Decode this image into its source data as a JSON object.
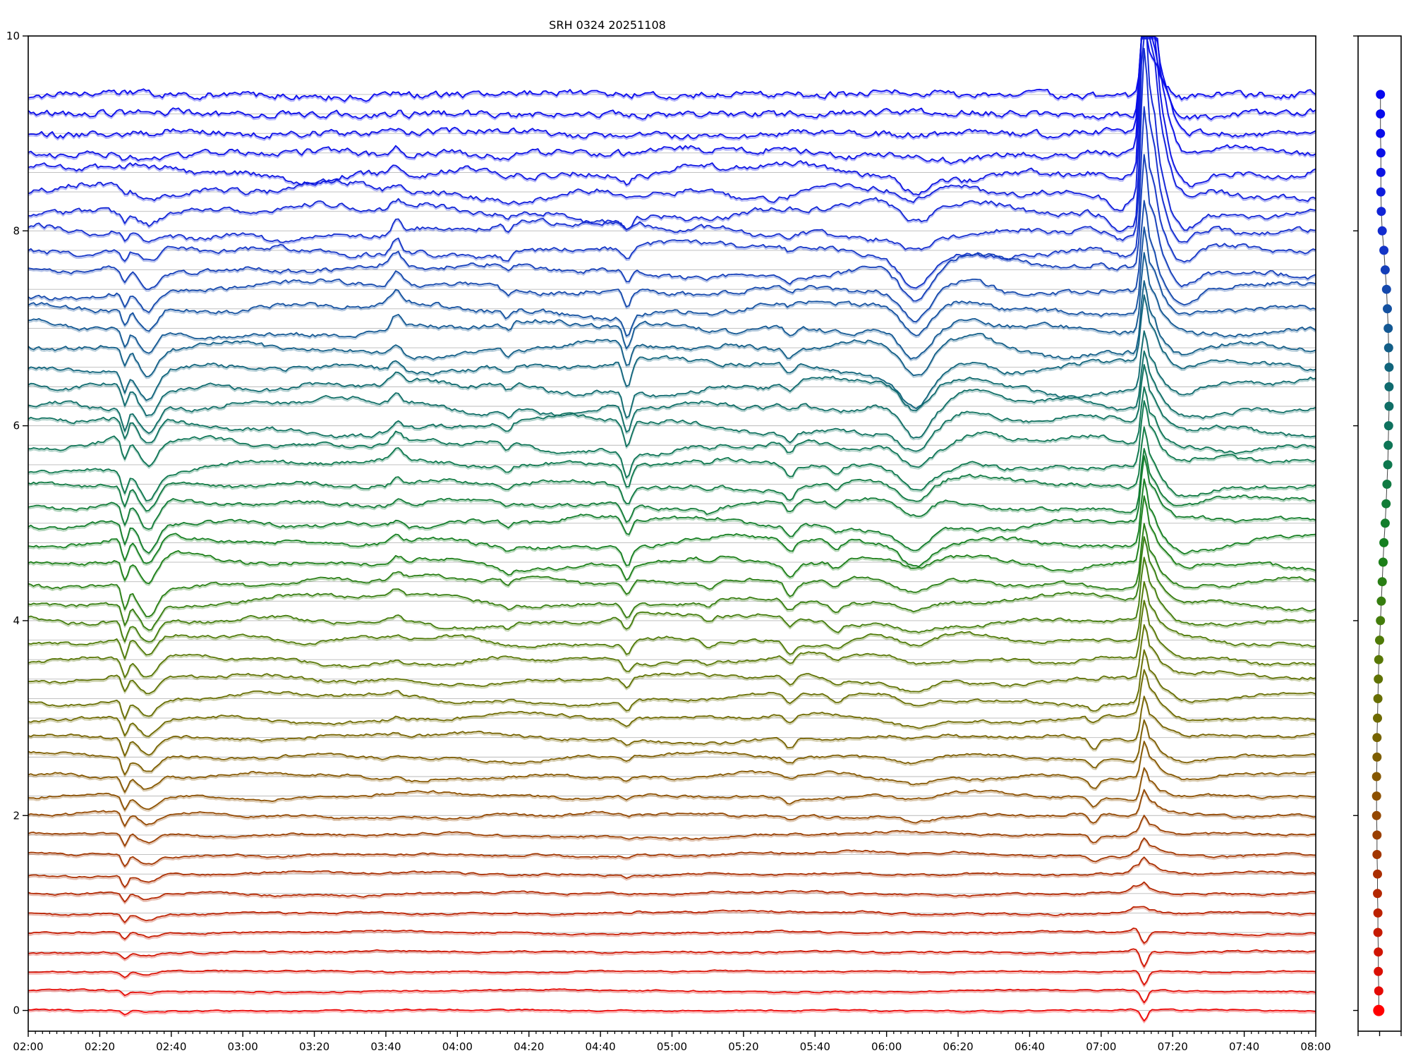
{
  "title": "SRH 0324 20251108",
  "axes": {
    "y_tick_labels": [
      "0",
      "2",
      "4",
      "6",
      "8",
      "10"
    ],
    "y_tick_values": [
      0,
      2,
      4,
      6,
      8,
      10
    ],
    "x_tick_labels": [
      "02:00",
      "02:20",
      "02:40",
      "03:00",
      "03:20",
      "03:40",
      "04:00",
      "04:20",
      "04:40",
      "05:00",
      "05:20",
      "05:40",
      "06:00",
      "06:20",
      "06:40",
      "07:00",
      "07:20",
      "07:40",
      "08:00"
    ],
    "x_major_minutes": [
      0,
      20,
      40,
      60,
      80,
      100,
      120,
      140,
      160,
      180,
      200,
      220,
      240,
      260,
      280,
      300,
      320,
      340,
      360
    ],
    "x_minor_step_minutes": 2,
    "x_total_minutes": 360
  },
  "chart_data": {
    "type": "line",
    "subtype": "stacked multi-trace time series (radioheliograph scan) with dot-column side panel",
    "title": "SRH 0324 20251108",
    "x_start": "02:00",
    "x_end": "08:00",
    "ylim": [
      -0.213,
      10
    ],
    "yticks": [
      0,
      2,
      4,
      6,
      8,
      10
    ],
    "n_traces": 48,
    "baseline_step": 0.2,
    "baseline_min": 0.0,
    "baseline_max": 9.4,
    "grid": "light horizontal line at each trace baseline",
    "legend": "none",
    "color_stops": [
      [
        0.0,
        "#ee0505"
      ],
      [
        0.08,
        "#c81800"
      ],
      [
        0.16,
        "#a53200"
      ],
      [
        0.24,
        "#8a5200"
      ],
      [
        0.32,
        "#6e6a00"
      ],
      [
        0.4,
        "#527a06"
      ],
      [
        0.5,
        "#16801a"
      ],
      [
        0.6,
        "#0e7850"
      ],
      [
        0.68,
        "#0f6a6e"
      ],
      [
        0.76,
        "#14549c"
      ],
      [
        0.84,
        "#1430cc"
      ],
      [
        0.92,
        "#0c12e4"
      ],
      [
        1.0,
        "#0808ee"
      ]
    ],
    "noise_amp": [
      0.006,
      0.006,
      0.006,
      0.007,
      0.007,
      0.008,
      0.008,
      0.008,
      0.009,
      0.009,
      0.01,
      0.01,
      0.011,
      0.011,
      0.012,
      0.012,
      0.012,
      0.013,
      0.013,
      0.013,
      0.014,
      0.014,
      0.014,
      0.015,
      0.015,
      0.015,
      0.015,
      0.016,
      0.016,
      0.016,
      0.017,
      0.017,
      0.017,
      0.018,
      0.018,
      0.018,
      0.019,
      0.019,
      0.02,
      0.021,
      0.022,
      0.023,
      0.024,
      0.025,
      0.027,
      0.028,
      0.03,
      0.03
    ],
    "drift_amp": [
      0.006,
      0.007,
      0.008,
      0.009,
      0.01,
      0.012,
      0.014,
      0.016,
      0.018,
      0.02,
      0.022,
      0.025,
      0.028,
      0.03,
      0.032,
      0.034,
      0.036,
      0.038,
      0.04,
      0.042,
      0.044,
      0.045,
      0.046,
      0.047,
      0.048,
      0.048,
      0.048,
      0.048,
      0.05,
      0.052,
      0.054,
      0.055,
      0.055,
      0.055,
      0.055,
      0.054,
      0.052,
      0.05,
      0.048,
      0.046,
      0.055,
      0.06,
      0.06,
      0.055,
      0.035,
      0.02,
      0.016,
      0.014
    ],
    "events": [
      {
        "name": "sharp dip",
        "time": "02:27",
        "t0": 27,
        "sigma": 0.8,
        "amps": [
          -0.05,
          -0.05,
          -0.06,
          -0.06,
          -0.07,
          -0.1,
          -0.11,
          -0.12,
          -0.12,
          -0.13,
          -0.13,
          -0.14,
          -0.16,
          -0.17,
          -0.18,
          -0.18,
          -0.18,
          -0.18,
          -0.18,
          -0.19,
          -0.2,
          -0.21,
          -0.22,
          -0.22,
          -0.22,
          -0.22,
          -0.22,
          -0.22,
          -0.22,
          -0.22,
          -0.21,
          -0.21,
          -0.2,
          -0.2,
          -0.19,
          -0.18,
          -0.16,
          -0.15,
          -0.13,
          -0.12,
          -0.1,
          -0.08,
          -0.06,
          -0.05,
          -0.04,
          -0.02,
          -0.01,
          0
        ]
      },
      {
        "name": "broad dip",
        "time": "02:33",
        "t0": 33.5,
        "sigma": 2.5,
        "amps": [
          -0.02,
          -0.02,
          -0.03,
          -0.03,
          -0.04,
          -0.06,
          -0.07,
          -0.08,
          -0.09,
          -0.1,
          -0.11,
          -0.12,
          -0.14,
          -0.15,
          -0.16,
          -0.17,
          -0.18,
          -0.19,
          -0.2,
          -0.21,
          -0.24,
          -0.26,
          -0.28,
          -0.29,
          -0.3,
          -0.3,
          -0.3,
          -0.29,
          -0.29,
          -0.28,
          -0.28,
          -0.28,
          -0.28,
          -0.28,
          -0.27,
          -0.26,
          -0.24,
          -0.22,
          -0.18,
          -0.15,
          -0.12,
          -0.1,
          -0.08,
          -0.06,
          -0.04,
          -0.02,
          -0.01,
          0
        ]
      },
      {
        "name": "bump",
        "time": "03:43",
        "t0": 103,
        "sigma": 1.4,
        "amps": [
          0,
          0,
          0,
          0,
          0,
          0,
          0,
          0,
          0,
          0,
          0,
          0,
          0.03,
          0.03,
          0.03,
          0.03,
          0.03,
          0.03,
          0.03,
          0.03,
          0.06,
          0.06,
          0.06,
          0.06,
          0.06,
          0.06,
          0.06,
          0.06,
          0.1,
          0.1,
          0.1,
          0.1,
          0.1,
          0.1,
          0.14,
          0.14,
          0.14,
          0.14,
          0.14,
          0.14,
          0.14,
          0.08,
          0.08,
          0.08,
          0.08,
          0.04,
          0.04,
          0.04
        ]
      },
      {
        "name": "small dip",
        "time": "04:14",
        "t0": 134,
        "sigma": 1.1,
        "amps": [
          0,
          0,
          0,
          0,
          0,
          0,
          0,
          0,
          0,
          0,
          0,
          0,
          0,
          0,
          0,
          0,
          0,
          0,
          0,
          0,
          -0.05,
          -0.05,
          -0.05,
          -0.05,
          -0.05,
          -0.05,
          -0.05,
          -0.05,
          -0.07,
          -0.07,
          -0.07,
          -0.07,
          -0.07,
          -0.07,
          -0.07,
          -0.07,
          -0.07,
          -0.07,
          -0.07,
          -0.07,
          -0.07,
          -0.04,
          -0.04,
          -0.04,
          0,
          0,
          0,
          0
        ]
      },
      {
        "name": "sharp dip",
        "time": "04:47",
        "t0": 167.5,
        "sigma": 1.1,
        "amps": [
          0,
          0,
          0,
          0,
          0,
          -0.01,
          -0.01,
          -0.02,
          -0.02,
          -0.02,
          -0.03,
          -0.03,
          -0.05,
          -0.06,
          -0.07,
          -0.08,
          -0.09,
          -0.1,
          -0.1,
          -0.11,
          -0.14,
          -0.15,
          -0.16,
          -0.17,
          -0.18,
          -0.18,
          -0.18,
          -0.18,
          -0.22,
          -0.24,
          -0.26,
          -0.28,
          -0.28,
          -0.28,
          -0.26,
          -0.24,
          -0.2,
          -0.16,
          -0.12,
          -0.1,
          -0.1,
          -0.1,
          -0.08,
          -0.06,
          -0.03,
          -0.02,
          -0.01,
          0
        ]
      },
      {
        "name": "small dip",
        "time": "05:10",
        "t0": 190,
        "sigma": 1.5,
        "amps": [
          0,
          0,
          0,
          0,
          0,
          0,
          0,
          0,
          0,
          0,
          0,
          0,
          0,
          0,
          0,
          0,
          0,
          0,
          -0.05,
          -0.05,
          -0.05,
          -0.05,
          -0.05,
          -0.05,
          -0.05,
          -0.05,
          -0.05,
          -0.05,
          -0.05,
          -0.05,
          -0.05,
          0,
          0,
          0,
          0,
          0,
          0,
          0,
          0,
          0,
          0,
          0,
          0,
          0,
          0,
          0,
          0,
          0
        ]
      },
      {
        "name": "dip",
        "time": "05:33",
        "t0": 213,
        "sigma": 1.3,
        "amps": [
          0,
          0,
          0,
          0,
          0,
          0,
          0,
          0,
          0,
          0,
          -0.05,
          -0.05,
          -0.05,
          -0.05,
          -0.1,
          -0.1,
          -0.1,
          -0.1,
          -0.1,
          -0.1,
          -0.1,
          -0.1,
          -0.12,
          -0.12,
          -0.12,
          -0.12,
          -0.12,
          -0.12,
          -0.12,
          -0.12,
          -0.08,
          -0.08,
          -0.08,
          -0.08,
          -0.08,
          -0.08,
          -0.05,
          -0.05,
          -0.05,
          -0.05,
          -0.05,
          0,
          0,
          0,
          0,
          0,
          0,
          0
        ]
      },
      {
        "name": "small dip",
        "time": "05:46",
        "t0": 226,
        "sigma": 1.5,
        "amps": [
          0,
          0,
          0,
          0,
          0,
          0,
          0,
          0,
          0,
          0,
          0,
          0,
          0,
          0,
          0,
          0,
          -0.07,
          -0.07,
          -0.07,
          -0.07,
          -0.07,
          -0.07,
          -0.07,
          -0.07,
          -0.07,
          -0.07,
          -0.07,
          -0.07,
          -0.07,
          0,
          0,
          0,
          0,
          0,
          0,
          0,
          0,
          0,
          0,
          0,
          0,
          0,
          0,
          0,
          0,
          0,
          0,
          0
        ]
      },
      {
        "name": "broad deep dip",
        "time": "06:08",
        "t0": 248,
        "sigma": 4,
        "amps": [
          0,
          0,
          0,
          0,
          0,
          0,
          0,
          0,
          0,
          0,
          -0.05,
          -0.05,
          -0.05,
          -0.05,
          -0.05,
          -0.05,
          -0.1,
          -0.1,
          -0.1,
          -0.1,
          -0.1,
          -0.1,
          -0.1,
          -0.1,
          -0.2,
          -0.2,
          -0.2,
          -0.2,
          -0.2,
          -0.2,
          -0.2,
          -0.33,
          -0.33,
          -0.33,
          -0.33,
          -0.33,
          -0.33,
          -0.33,
          -0.33,
          -0.33,
          -0.18,
          -0.18,
          -0.18,
          -0.18,
          0,
          0,
          0,
          0
        ]
      },
      {
        "name": "recovery bump",
        "time": "06:24",
        "t0": 264,
        "sigma": 5,
        "amps": [
          0,
          0,
          0,
          0,
          0,
          0,
          0,
          0,
          0,
          0,
          0,
          0,
          0,
          0,
          0,
          0,
          0,
          0,
          0,
          0,
          0,
          0,
          0,
          0,
          0,
          0,
          0,
          0,
          0.1,
          0.1,
          0.1,
          0.1,
          0.1,
          0.1,
          0.1,
          0.1,
          0.1,
          0.1,
          0.1,
          0,
          0,
          0,
          0,
          0,
          0,
          0,
          0,
          0
        ]
      },
      {
        "name": "notch",
        "time": "06:58",
        "t0": 298,
        "sigma": 1.2,
        "amps": [
          0,
          0,
          0,
          0,
          0,
          0,
          0,
          0,
          -0.05,
          -0.08,
          -0.1,
          -0.1,
          -0.1,
          -0.1,
          -0.1,
          -0.08,
          -0.06,
          -0.04,
          0,
          0,
          0,
          0,
          0,
          0,
          0,
          0,
          0,
          0,
          0,
          0,
          0,
          0,
          0,
          0,
          0,
          0,
          0,
          0,
          0,
          0,
          0,
          0,
          0,
          0,
          0,
          0,
          0,
          0
        ]
      },
      {
        "name": "pre-flare sag",
        "time": "07:05",
        "t0": 305,
        "sigma": 3,
        "amps": [
          0,
          0,
          0,
          0,
          0,
          0,
          0,
          0,
          0,
          0,
          0,
          0,
          0,
          0,
          0,
          0,
          0,
          0,
          0,
          0,
          0,
          0,
          0,
          0,
          0,
          0,
          0,
          0,
          0,
          0,
          0,
          0,
          0,
          0,
          0,
          0,
          0,
          0,
          -0.05,
          -0.08,
          -0.14,
          -0.16,
          -0.14,
          -0.1,
          -0.04,
          -0.02,
          0,
          0
        ]
      },
      {
        "name": "pre-peak bump",
        "time": "07:09",
        "t0": 309.5,
        "sigma": 1.2,
        "amps": [
          0,
          0,
          0,
          0.04,
          0.05,
          0.06,
          0.07,
          0.07,
          0.06,
          0.05,
          0,
          0,
          0,
          0,
          0,
          0,
          0,
          0,
          0,
          0,
          0,
          0,
          0,
          0,
          0,
          0,
          0,
          0,
          0,
          0,
          0,
          0,
          0,
          0,
          0,
          0,
          0,
          0,
          0,
          0,
          0,
          0,
          0,
          0,
          0,
          0,
          0,
          0
        ]
      },
      {
        "name": "flare spike",
        "time": "07:12",
        "t0": 312,
        "sigma": 0.9,
        "shoulders": [
          [
            2.3,
            1.17,
            0.45
          ],
          [
            4.6,
            1.7,
            0.2
          ],
          [
            7.5,
            2.4,
            0.09
          ]
        ],
        "amps": [
          -0.12,
          -0.13,
          -0.14,
          -0.15,
          -0.12,
          0.05,
          0.1,
          0.15,
          0.18,
          0.2,
          0.25,
          0.3,
          0.35,
          0.4,
          0.42,
          0.45,
          0.5,
          0.52,
          0.55,
          0.55,
          0.6,
          0.6,
          0.6,
          0.62,
          0.65,
          0.62,
          0.6,
          0.6,
          0.58,
          0.55,
          0.55,
          0.55,
          0.6,
          0.65,
          0.7,
          0.75,
          0.8,
          0.9,
          1.1,
          1.4,
          1.8,
          2.2,
          2.6,
          2.9,
          2.8,
          2.2,
          1.4,
          0.8
        ]
      },
      {
        "name": "post-flare undershoot",
        "time": "07:21",
        "t0": 321,
        "sigma": 4,
        "amps": [
          0,
          0,
          0,
          0,
          0,
          0,
          0,
          0,
          0,
          0,
          0,
          0,
          0,
          0,
          0,
          0,
          0,
          0,
          0,
          0,
          -0.05,
          -0.05,
          -0.05,
          -0.05,
          -0.05,
          -0.05,
          -0.05,
          -0.05,
          -0.05,
          -0.05,
          -0.05,
          -0.05,
          -0.05,
          -0.05,
          -0.05,
          -0.05,
          -0.12,
          -0.15,
          -0.18,
          -0.2,
          -0.2,
          -0.2,
          -0.18,
          -0.15,
          -0.12,
          -0.05,
          -0.05,
          -0.05
        ]
      }
    ],
    "right_panel": {
      "description": "dot per trace, same color coding, connected by thin line; x = relative value 0..1 across panel",
      "dot_x": [
        0.48,
        0.48,
        0.47,
        0.47,
        0.46,
        0.46,
        0.45,
        0.45,
        0.44,
        0.44,
        0.43,
        0.43,
        0.43,
        0.44,
        0.44,
        0.45,
        0.46,
        0.47,
        0.48,
        0.5,
        0.52,
        0.54,
        0.56,
        0.58,
        0.6,
        0.63,
        0.65,
        0.67,
        0.69,
        0.7,
        0.71,
        0.72,
        0.72,
        0.72,
        0.71,
        0.7,
        0.68,
        0.66,
        0.63,
        0.6,
        0.56,
        0.54,
        0.53,
        0.53,
        0.53,
        0.52,
        0.52,
        0.52
      ],
      "bottom_dot_color": "#ff0000"
    },
    "seed": 40427
  },
  "colors": {
    "background": "#ffffff",
    "axis": "#000000",
    "gridline": "#b9b9b9",
    "dot_connector": "#444444",
    "text": "#000000"
  }
}
